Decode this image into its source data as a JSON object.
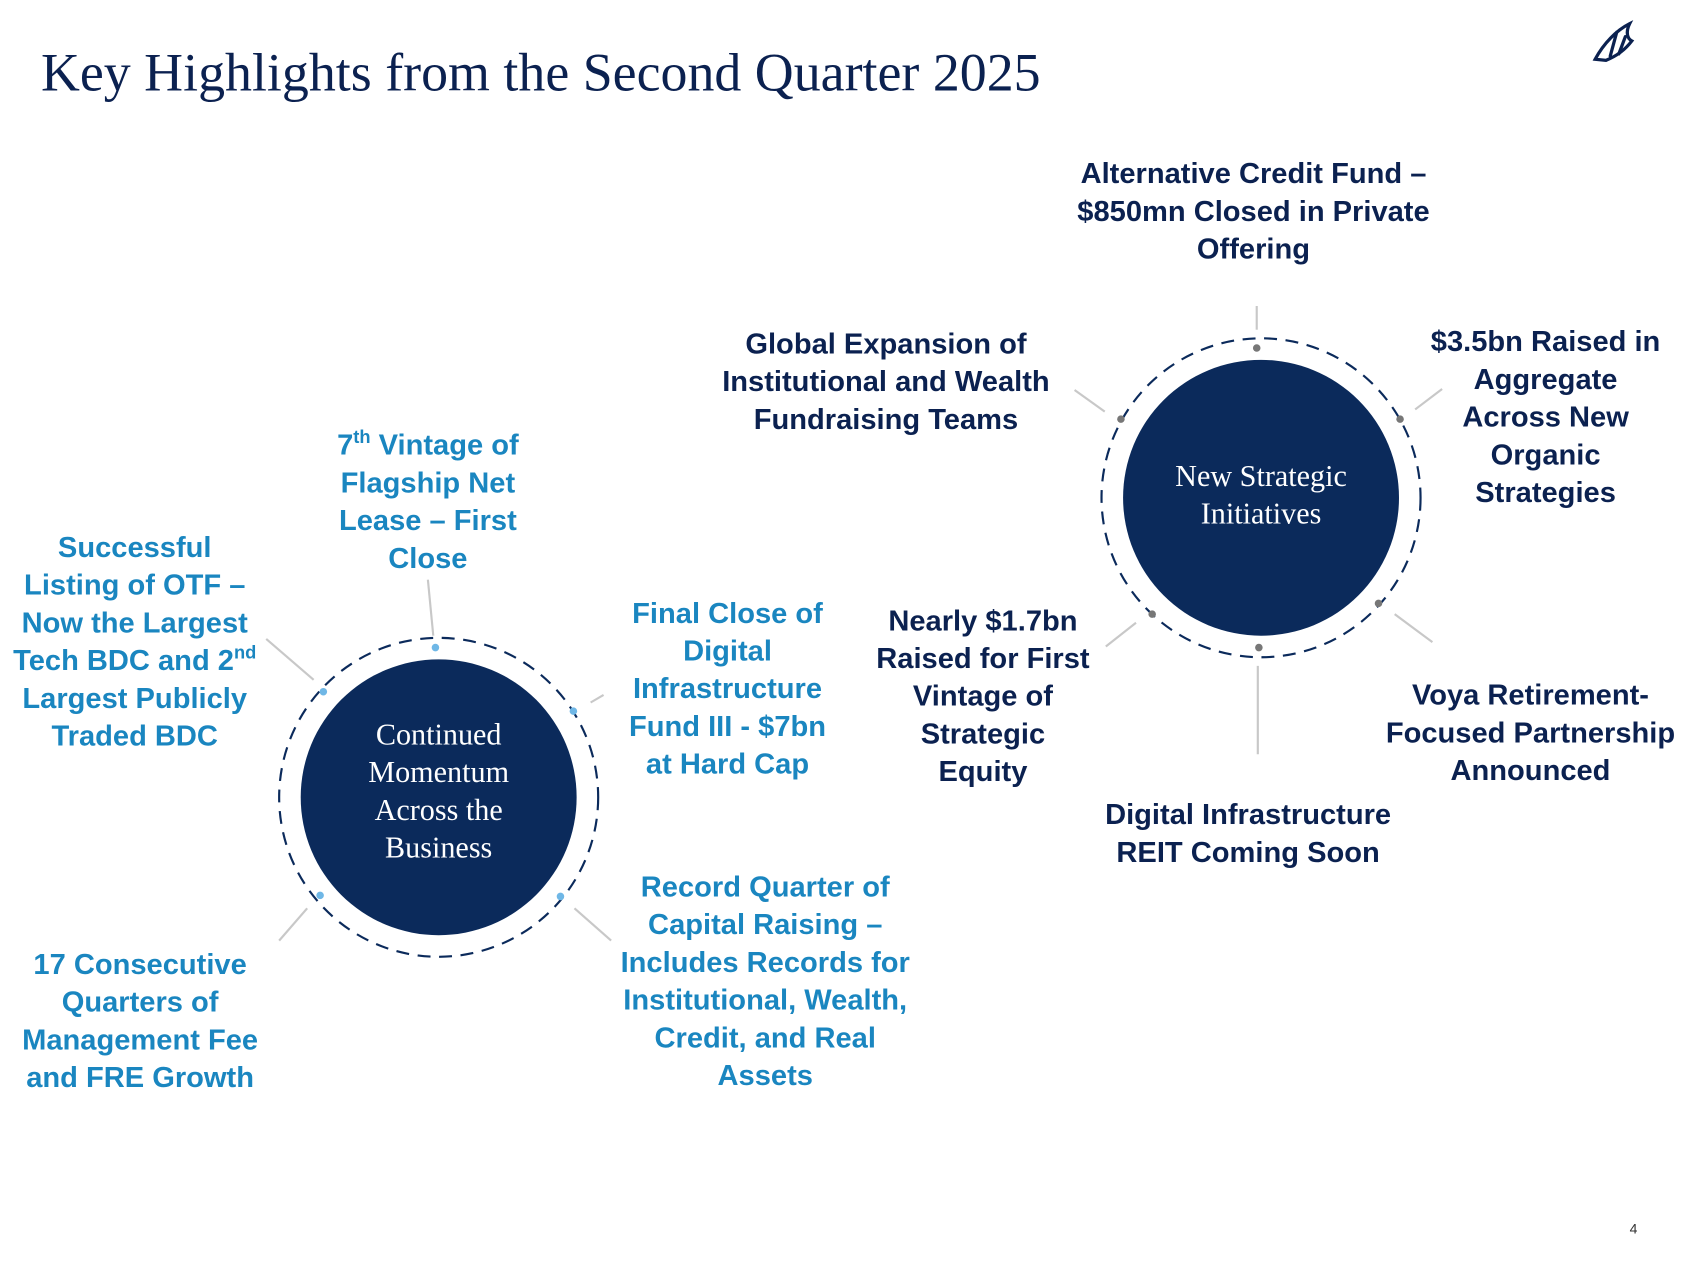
{
  "header": {
    "title": "Key Highlights from the Second Quarter 2025",
    "page_number": "4"
  },
  "hubs": [
    {
      "label": [
        "Continued",
        "Momentum",
        "Across the",
        "Business"
      ],
      "items": [
        {
          "lines": [
            [
              "7",
              {
                "sup": "th"
              },
              " Vintage of"
            ],
            "Flagship Net",
            "Lease – First",
            "Close"
          ]
        },
        {
          "lines": [
            "Final Close of",
            "Digital",
            "Infrastructure",
            "Fund III - $7bn",
            "at Hard Cap"
          ]
        },
        {
          "lines": [
            "Record Quarter of",
            "Capital Raising –",
            "Includes Records for",
            "Institutional, Wealth,",
            "Credit, and Real",
            "Assets"
          ]
        },
        {
          "lines": [
            "17 Consecutive",
            "Quarters of",
            "Management Fee",
            "and FRE Growth"
          ]
        },
        {
          "lines": [
            "Successful",
            "Listing of OTF –",
            "Now the Largest",
            [
              "Tech BDC and 2",
              {
                "sup": "nd"
              }
            ],
            "Largest Publicly",
            "Traded BDC"
          ]
        }
      ]
    },
    {
      "label": [
        "New Strategic",
        "Initiatives"
      ],
      "items": [
        {
          "lines": [
            "Alternative Credit Fund –",
            "$850mn Closed in Private",
            "Offering"
          ]
        },
        {
          "lines": [
            "$3.5bn Raised in",
            "Aggregate",
            "Across New",
            "Organic",
            "Strategies"
          ]
        },
        {
          "lines": [
            "Voya Retirement-",
            "Focused Partnership",
            "Announced"
          ]
        },
        {
          "lines": [
            "Digital Infrastructure",
            "REIT Coming Soon"
          ]
        },
        {
          "lines": [
            "Nearly $1.7bn",
            "Raised for First",
            "Vintage of",
            "Strategic",
            "Equity"
          ]
        },
        {
          "lines": [
            "Global Expansion of",
            "Institutional and Wealth",
            "Fundraising Teams"
          ]
        }
      ]
    }
  ]
}
